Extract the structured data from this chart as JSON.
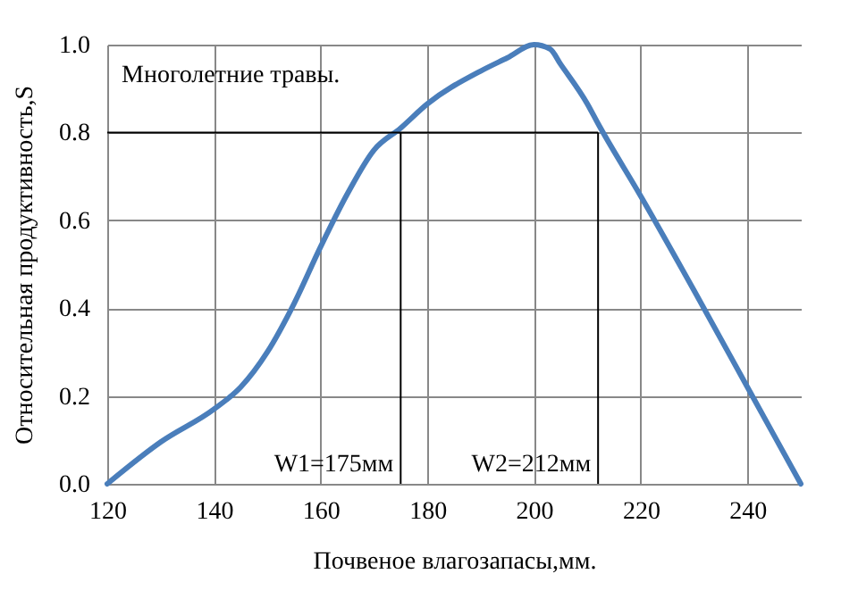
{
  "chart_data": {
    "type": "line",
    "xlabel": "Почвеное влагозапасы,мм.",
    "ylabel": "Относительная продуктивность,S",
    "x": [
      120,
      130,
      140,
      145,
      150,
      155,
      160,
      165,
      170,
      175,
      180,
      190,
      195,
      200,
      203,
      205,
      210,
      212,
      220,
      230,
      240,
      250
    ],
    "series": [
      {
        "color": "#4a7ebb",
        "values": [
          0,
          0.095,
          0.17,
          0.22,
          0.3,
          0.41,
          0.54,
          0.66,
          0.76,
          0.81,
          0.865,
          0.94,
          0.97,
          1.0,
          0.99,
          0.955,
          0.865,
          0.82,
          0.655,
          0.44,
          0.22,
          0
        ]
      }
    ],
    "xlim": [
      120,
      250
    ],
    "xticks": [
      120,
      140,
      160,
      180,
      200,
      220,
      240
    ],
    "ylim": [
      0,
      1
    ],
    "yticks": [
      {
        "value": 0,
        "label": "0.0"
      },
      {
        "value": 0.2,
        "label": "0.2"
      },
      {
        "value": 0.4,
        "label": "0.4"
      },
      {
        "value": 0.6,
        "label": "0.6"
      },
      {
        "value": 0.8,
        "label": "0.8"
      },
      {
        "value": 1,
        "label": "1.0"
      }
    ],
    "grid": true,
    "marker": "none",
    "line_style": "solid",
    "ref_lines": [
      {
        "axis": "y",
        "value": 0.8,
        "color": "#000000"
      },
      {
        "axis": "x",
        "value": 175,
        "label": "W1=175мм",
        "color": "#000000"
      },
      {
        "axis": "x",
        "value": 212,
        "label": "W2=212мм",
        "color": "#000000"
      }
    ],
    "annotations": [
      "Многолетние травы."
    ]
  }
}
